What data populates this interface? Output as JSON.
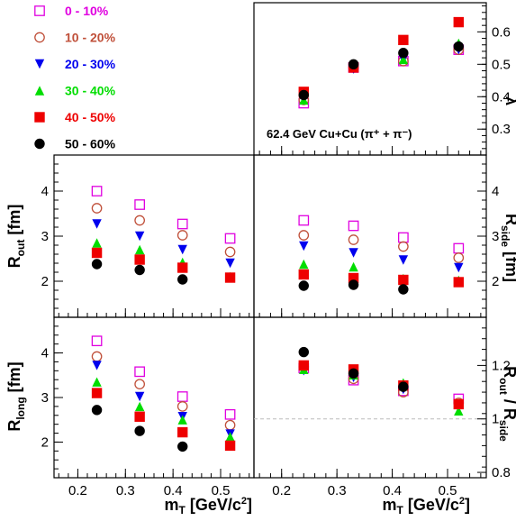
{
  "chart_data": {
    "type": "scatter",
    "annotation": "62.4 GeV Cu+Cu (π⁺ + π⁻)",
    "xlabel": "m_T [GeV/c²]",
    "x": [
      0.24,
      0.33,
      0.42,
      0.52
    ],
    "xlim": [
      0.15,
      0.57
    ],
    "xticks": [
      "0.2",
      "0.3",
      "0.4",
      "0.5"
    ],
    "legend_placement": "top-left",
    "series": [
      {
        "name": "0 - 10%",
        "color": "#e000e0",
        "marker": "open-square"
      },
      {
        "name": "10 - 20%",
        "color": "#c0503a",
        "marker": "open-circle"
      },
      {
        "name": "20 - 30%",
        "color": "#0000ee",
        "marker": "filled-triangle-down"
      },
      {
        "name": "30 - 40%",
        "color": "#00dd00",
        "marker": "filled-triangle-up"
      },
      {
        "name": "40 - 50%",
        "color": "#ee0000",
        "marker": "filled-square"
      },
      {
        "name": "50 - 60%",
        "color": "#000000",
        "marker": "filled-circle"
      }
    ],
    "panels": [
      {
        "id": "lambda",
        "ylabel": "λ",
        "ylim": [
          0.22,
          0.69
        ],
        "yticks": [
          "0.3",
          "0.4",
          "0.5",
          "0.6"
        ],
        "values": [
          [
            0.38,
            0.49,
            0.51,
            0.545
          ],
          [
            0.39,
            0.49,
            0.51,
            0.545
          ],
          [
            0.405,
            0.485,
            0.515,
            0.545
          ],
          [
            0.39,
            0.495,
            0.515,
            0.565
          ],
          [
            0.415,
            0.49,
            0.575,
            0.63
          ],
          [
            0.405,
            0.5,
            0.535,
            0.555
          ]
        ]
      },
      {
        "id": "rout",
        "ylabel": "R_out [fm]",
        "ylim": [
          1.2,
          4.8
        ],
        "yticks": [
          "2",
          "3",
          "4"
        ],
        "values": [
          [
            4.0,
            3.7,
            3.27,
            2.95
          ],
          [
            3.62,
            3.35,
            3.02,
            2.65
          ],
          [
            3.27,
            3.0,
            2.7,
            2.4
          ],
          [
            2.85,
            2.7,
            2.42,
            2.1
          ],
          [
            2.63,
            2.48,
            2.3,
            2.08
          ],
          [
            2.38,
            2.25,
            2.04,
            null
          ]
        ]
      },
      {
        "id": "rside",
        "ylabel": "R_side [fm]",
        "ylim": [
          1.2,
          4.8
        ],
        "yticks": [
          "2",
          "3",
          "4"
        ],
        "values": [
          [
            3.35,
            3.23,
            2.97,
            2.73
          ],
          [
            3.02,
            2.92,
            2.77,
            2.52
          ],
          [
            2.78,
            2.63,
            2.47,
            2.3
          ],
          [
            2.38,
            2.32,
            2.06,
            2.02
          ],
          [
            2.15,
            2.07,
            2.03,
            1.98
          ],
          [
            1.9,
            1.92,
            1.82,
            null
          ]
        ]
      },
      {
        "id": "rlong",
        "ylabel": "R_long [fm]",
        "ylim": [
          1.2,
          4.8
        ],
        "yticks": [
          "2",
          "3",
          "4"
        ],
        "values": [
          [
            4.27,
            3.58,
            3.02,
            2.62
          ],
          [
            3.92,
            3.3,
            2.8,
            2.38
          ],
          [
            3.72,
            3.02,
            2.57,
            2.18
          ],
          [
            3.35,
            2.8,
            2.5,
            2.12
          ],
          [
            3.1,
            2.57,
            2.22,
            1.92
          ],
          [
            2.72,
            2.25,
            1.9,
            null
          ]
        ]
      },
      {
        "id": "ratio",
        "ylabel": "R_out / R_side",
        "ylim": [
          0.78,
          1.38
        ],
        "yticks": [
          "0.8",
          "1",
          "1.2"
        ],
        "reference_line": 1.0,
        "values": [
          [
            1.19,
            1.145,
            1.105,
            1.075
          ],
          [
            1.195,
            1.15,
            1.1,
            1.06
          ],
          [
            1.18,
            1.155,
            1.11,
            1.05
          ],
          [
            1.185,
            1.165,
            1.135,
            1.03
          ],
          [
            1.2,
            1.185,
            1.125,
            1.055
          ],
          [
            1.25,
            1.17,
            1.12,
            null
          ]
        ]
      }
    ]
  }
}
